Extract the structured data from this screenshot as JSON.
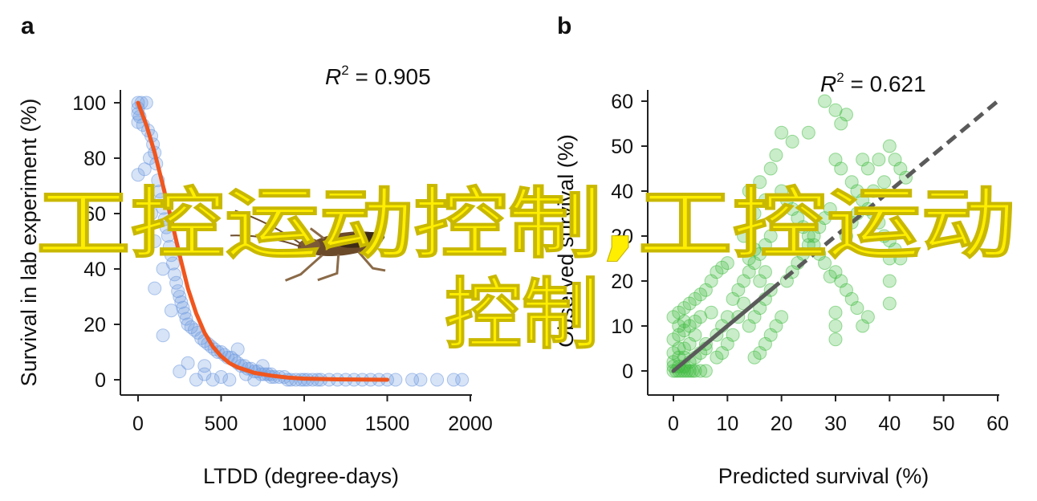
{
  "panels": {
    "a": {
      "letter": "a"
    },
    "b": {
      "letter": "b"
    }
  },
  "overlay_text": {
    "line1": "工控运动控制,工控运动",
    "line2": "控制"
  },
  "insect_icon": "cockroach-icon",
  "colors": {
    "a_points": "#6f9be0",
    "a_curve": "#f0561e",
    "b_points": "#3dbb3d",
    "b_line": "#5a5a5a",
    "overlay": "#ffee00"
  },
  "chart_data": [
    {
      "type": "scatter",
      "title": "",
      "xlabel": "LTDD (degree-days)",
      "ylabel": "Survival in lab experiment (%)",
      "xlim": [
        -100,
        2000
      ],
      "ylim": [
        -5,
        100
      ],
      "xticks": [
        "0",
        "500",
        "1000",
        "1500",
        "2000"
      ],
      "yticks": [
        "0",
        "20",
        "40",
        "60",
        "80",
        "100"
      ],
      "annotation": {
        "r2_symbol": "R",
        "r2_sup": "2",
        "r2_value": " = 0.905"
      },
      "points": [
        [
          0,
          100
        ],
        [
          20,
          100
        ],
        [
          50,
          100
        ],
        [
          0,
          98
        ],
        [
          0,
          96
        ],
        [
          10,
          95
        ],
        [
          0,
          93
        ],
        [
          30,
          92
        ],
        [
          60,
          90
        ],
        [
          80,
          88
        ],
        [
          90,
          85
        ],
        [
          100,
          82
        ],
        [
          70,
          80
        ],
        [
          110,
          78
        ],
        [
          40,
          76
        ],
        [
          0,
          74
        ],
        [
          120,
          72
        ],
        [
          130,
          68
        ],
        [
          140,
          65
        ],
        [
          150,
          62
        ],
        [
          80,
          60
        ],
        [
          160,
          58
        ],
        [
          170,
          55
        ],
        [
          180,
          52
        ],
        [
          100,
          50
        ],
        [
          190,
          48
        ],
        [
          200,
          45
        ],
        [
          210,
          42
        ],
        [
          150,
          40
        ],
        [
          220,
          38
        ],
        [
          230,
          35
        ],
        [
          100,
          33
        ],
        [
          240,
          32
        ],
        [
          250,
          30
        ],
        [
          260,
          28
        ],
        [
          270,
          26
        ],
        [
          200,
          25
        ],
        [
          280,
          24
        ],
        [
          290,
          22
        ],
        [
          300,
          20
        ],
        [
          320,
          19
        ],
        [
          340,
          18
        ],
        [
          360,
          17
        ],
        [
          150,
          16
        ],
        [
          380,
          15
        ],
        [
          400,
          14
        ],
        [
          420,
          13
        ],
        [
          440,
          12
        ],
        [
          460,
          11
        ],
        [
          480,
          10
        ],
        [
          500,
          10
        ],
        [
          520,
          9
        ],
        [
          540,
          8
        ],
        [
          560,
          8
        ],
        [
          580,
          7
        ],
        [
          600,
          6
        ],
        [
          300,
          6
        ],
        [
          620,
          5
        ],
        [
          640,
          5
        ],
        [
          660,
          4
        ],
        [
          680,
          4
        ],
        [
          700,
          3
        ],
        [
          720,
          3
        ],
        [
          740,
          2
        ],
        [
          760,
          2
        ],
        [
          780,
          2
        ],
        [
          800,
          1
        ],
        [
          820,
          1
        ],
        [
          850,
          1
        ],
        [
          880,
          1
        ],
        [
          900,
          0
        ],
        [
          920,
          0
        ],
        [
          950,
          0
        ],
        [
          980,
          0
        ],
        [
          1000,
          0
        ],
        [
          1020,
          0
        ],
        [
          1050,
          0
        ],
        [
          1080,
          0
        ],
        [
          1100,
          0
        ],
        [
          1150,
          0
        ],
        [
          1200,
          0
        ],
        [
          1250,
          0
        ],
        [
          1300,
          0
        ],
        [
          1350,
          0
        ],
        [
          1400,
          0
        ],
        [
          1450,
          0
        ],
        [
          1500,
          0
        ],
        [
          1550,
          0
        ],
        [
          1650,
          0
        ],
        [
          1700,
          0
        ],
        [
          1800,
          0
        ],
        [
          1900,
          0
        ],
        [
          1950,
          0
        ],
        [
          400,
          2
        ],
        [
          450,
          0
        ],
        [
          500,
          1
        ],
        [
          550,
          0
        ],
        [
          600,
          11
        ],
        [
          650,
          2
        ],
        [
          700,
          0
        ],
        [
          750,
          5
        ],
        [
          800,
          2
        ],
        [
          250,
          3
        ],
        [
          350,
          0
        ],
        [
          400,
          5
        ]
      ],
      "curve": [
        [
          0,
          100
        ],
        [
          50,
          92
        ],
        [
          100,
          82
        ],
        [
          150,
          70
        ],
        [
          200,
          58
        ],
        [
          250,
          45
        ],
        [
          300,
          33
        ],
        [
          350,
          24
        ],
        [
          400,
          17
        ],
        [
          450,
          12
        ],
        [
          500,
          8.5
        ],
        [
          550,
          6
        ],
        [
          600,
          4.5
        ],
        [
          700,
          2.5
        ],
        [
          800,
          1.5
        ],
        [
          900,
          0.8
        ],
        [
          1000,
          0.4
        ],
        [
          1200,
          0.15
        ],
        [
          1500,
          0
        ]
      ]
    },
    {
      "type": "scatter",
      "title": "",
      "xlabel": "Predicted survival (%)",
      "ylabel": "Observed survival (%)",
      "xlim": [
        -1,
        60
      ],
      "ylim": [
        -2,
        60
      ],
      "xticks": [
        "0",
        "10",
        "20",
        "30",
        "40",
        "50",
        "60"
      ],
      "yticks": [
        "0",
        "10",
        "20",
        "30",
        "40",
        "50",
        "60"
      ],
      "annotation": {
        "r2_symbol": "R",
        "r2_sup": "2",
        "r2_value": " = 0.621"
      },
      "points": [
        [
          0,
          0
        ],
        [
          0.5,
          0
        ],
        [
          1,
          0
        ],
        [
          1.5,
          0
        ],
        [
          2,
          0
        ],
        [
          2.5,
          0
        ],
        [
          3,
          0
        ],
        [
          3.5,
          0
        ],
        [
          4,
          0
        ],
        [
          5,
          0
        ],
        [
          6,
          0
        ],
        [
          0,
          1
        ],
        [
          1,
          1
        ],
        [
          2,
          1
        ],
        [
          3,
          2
        ],
        [
          0,
          2
        ],
        [
          1,
          3
        ],
        [
          2,
          3
        ],
        [
          4,
          3
        ],
        [
          0,
          4
        ],
        [
          1,
          5
        ],
        [
          2,
          5
        ],
        [
          3,
          6
        ],
        [
          0,
          7
        ],
        [
          1,
          8
        ],
        [
          2,
          9
        ],
        [
          3,
          10
        ],
        [
          4,
          11
        ],
        [
          5,
          12
        ],
        [
          1,
          13
        ],
        [
          2,
          14
        ],
        [
          3,
          15
        ],
        [
          4,
          16
        ],
        [
          5,
          17
        ],
        [
          6,
          18
        ],
        [
          7,
          20
        ],
        [
          8,
          22
        ],
        [
          9,
          23
        ],
        [
          10,
          24
        ],
        [
          1,
          10
        ],
        [
          2,
          11
        ],
        [
          0,
          12
        ],
        [
          6,
          5
        ],
        [
          8,
          8
        ],
        [
          7,
          13
        ],
        [
          9,
          10
        ],
        [
          10,
          12
        ],
        [
          11,
          16
        ],
        [
          12,
          18
        ],
        [
          13,
          20
        ],
        [
          14,
          22
        ],
        [
          15,
          24
        ],
        [
          16,
          26
        ],
        [
          17,
          28
        ],
        [
          18,
          30
        ],
        [
          14,
          10
        ],
        [
          15,
          12
        ],
        [
          16,
          14
        ],
        [
          17,
          16
        ],
        [
          18,
          18
        ],
        [
          14,
          25
        ],
        [
          15,
          27
        ],
        [
          16,
          20
        ],
        [
          17,
          22
        ],
        [
          13,
          15
        ],
        [
          12,
          12
        ],
        [
          11,
          8
        ],
        [
          10,
          6
        ],
        [
          9,
          4
        ],
        [
          8,
          3
        ],
        [
          6,
          6
        ],
        [
          5,
          4
        ],
        [
          4,
          8
        ],
        [
          13,
          30
        ],
        [
          14,
          40
        ],
        [
          15,
          35
        ],
        [
          16,
          42
        ],
        [
          17,
          38
        ],
        [
          18,
          45
        ],
        [
          19,
          48
        ],
        [
          20,
          53
        ],
        [
          22,
          51
        ],
        [
          25,
          53
        ],
        [
          28,
          60
        ],
        [
          30,
          58
        ],
        [
          31,
          55
        ],
        [
          32,
          57
        ],
        [
          30,
          47
        ],
        [
          31,
          45
        ],
        [
          33,
          42
        ],
        [
          35,
          47
        ],
        [
          36,
          45
        ],
        [
          34,
          40
        ],
        [
          35,
          38
        ],
        [
          36,
          36
        ],
        [
          37,
          35
        ],
        [
          38,
          33
        ],
        [
          39,
          30
        ],
        [
          40,
          29
        ],
        [
          41,
          27
        ],
        [
          42,
          25
        ],
        [
          40,
          50
        ],
        [
          40,
          20
        ],
        [
          40,
          15
        ],
        [
          40,
          25
        ],
        [
          35,
          10
        ],
        [
          36,
          12
        ],
        [
          34,
          14
        ],
        [
          33,
          16
        ],
        [
          32,
          18
        ],
        [
          31,
          20
        ],
        [
          30,
          22
        ],
        [
          30,
          13
        ],
        [
          30,
          10
        ],
        [
          30,
          7
        ],
        [
          32,
          30
        ],
        [
          33,
          33
        ],
        [
          34,
          35
        ],
        [
          20,
          40
        ],
        [
          21,
          38
        ],
        [
          22,
          36
        ],
        [
          23,
          34
        ],
        [
          24,
          32
        ],
        [
          25,
          30
        ],
        [
          26,
          28
        ],
        [
          27,
          26
        ],
        [
          28,
          24
        ],
        [
          29,
          21
        ],
        [
          21,
          20
        ],
        [
          22,
          22
        ],
        [
          23,
          24
        ],
        [
          24,
          26
        ],
        [
          25,
          28
        ],
        [
          26,
          30
        ],
        [
          27,
          32
        ],
        [
          28,
          34
        ],
        [
          29,
          36
        ],
        [
          42,
          45
        ],
        [
          43,
          43
        ],
        [
          41,
          47
        ],
        [
          39,
          42
        ],
        [
          38,
          47
        ],
        [
          37,
          40
        ],
        [
          20,
          12
        ],
        [
          19,
          10
        ],
        [
          18,
          8
        ],
        [
          17,
          6
        ],
        [
          16,
          4
        ],
        [
          15,
          3
        ]
      ],
      "fit_line": {
        "x": [
          0,
          60
        ],
        "y": [
          0,
          60
        ],
        "solid_until_x": 18,
        "style": "dashed"
      }
    }
  ]
}
